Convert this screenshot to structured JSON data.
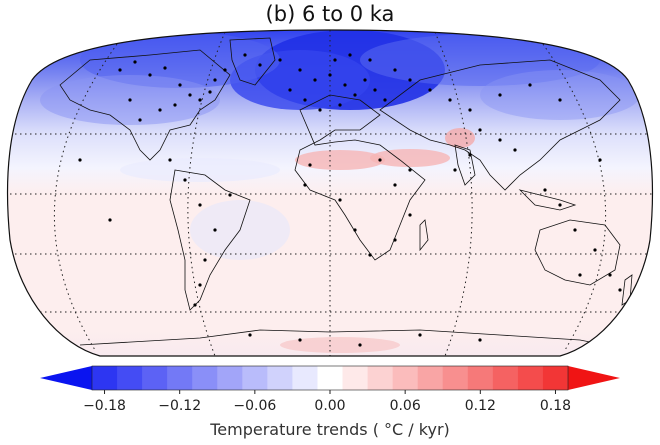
{
  "title": "(b) 6 to 0 ka",
  "colorbar": {
    "label": "Temperature trends ( °C / kyr)",
    "ticks": [
      "−0.18",
      "−0.12",
      "−0.06",
      "0.00",
      "0.06",
      "0.12",
      "0.18"
    ],
    "min": -0.21,
    "max": 0.21,
    "step": 0.02,
    "extend": "both",
    "cold_color": "#0a14f0",
    "warm_color": "#f01414",
    "neutral_color": "#ffffff"
  },
  "map": {
    "projection": "Robinson",
    "ocean_background": "#fdf0f0",
    "gridlines": "dotted",
    "site_marker_color": "#000000"
  }
}
